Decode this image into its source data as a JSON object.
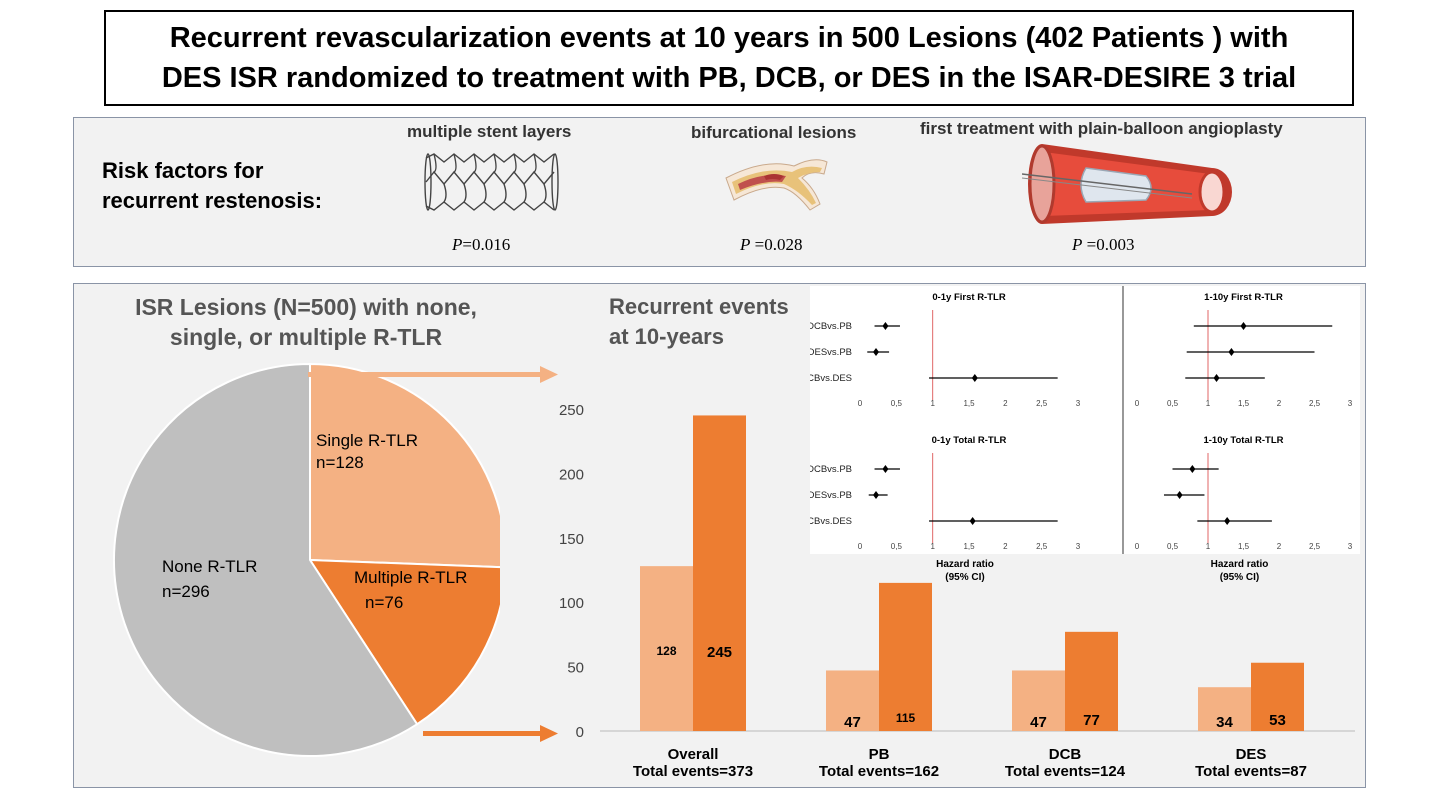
{
  "title": {
    "line1": "Recurrent revascularization events at 10 years in 500 Lesions (402 Patients ) with",
    "line2": "DES ISR randomized to treatment with PB, DCB, or DES in the ISAR-DESIRE 3 trial"
  },
  "risk_factors": {
    "heading_line1": "Risk factors for",
    "heading_line2": "recurrent restenosis:",
    "items": [
      {
        "label": "multiple stent layers",
        "p_symbol": "P",
        "p_value": "=0.016",
        "icon": "stent-mesh-icon"
      },
      {
        "label": "bifurcational lesions",
        "p_symbol": "P",
        "p_value": " =0.028",
        "icon": "artery-bifurcation-icon"
      },
      {
        "label": "first treatment with plain-balloon angioplasty",
        "p_symbol": "P",
        "p_value": " =0.003",
        "icon": "balloon-vessel-icon"
      }
    ]
  },
  "pie_title": {
    "line1": "ISR Lesions (N=500) with none,",
    "line2": "single, or multiple R-TLR"
  },
  "bars_title": {
    "line1": "Recurrent events",
    "line2": "at 10-years"
  },
  "colors": {
    "gray": "#bfbfbf",
    "light_orange": "#f4b183",
    "orange": "#ed7d31",
    "panel": "#f2f2f2",
    "red_line": "#e06666"
  },
  "chart_data": [
    {
      "type": "pie",
      "slices": [
        {
          "label": "Single R-TLR",
          "count_label": "n=128",
          "value": 128,
          "color": "#f4b183"
        },
        {
          "label": "Multiple R-TLR",
          "count_label": "n=76",
          "value": 76,
          "color": "#ed7d31"
        },
        {
          "label": "None R-TLR",
          "count_label": "n=296",
          "value": 296,
          "color": "#bfbfbf"
        }
      ]
    },
    {
      "type": "bar",
      "categories": [
        {
          "name": "Overall",
          "total": "Total events=373"
        },
        {
          "name": "PB",
          "total": "Total events=162"
        },
        {
          "name": "DCB",
          "total": "Total events=124"
        },
        {
          "name": "DES",
          "total": "Total events=87"
        }
      ],
      "series": [
        {
          "values": [
            128,
            47,
            47,
            34
          ],
          "labels": [
            "128",
            "47",
            "47",
            "34"
          ],
          "color": "#f4b183"
        },
        {
          "values": [
            245,
            115,
            77,
            53
          ],
          "labels": [
            "245",
            "115",
            "77",
            "53"
          ],
          "color": "#ed7d31"
        }
      ],
      "ylim": [
        0,
        250
      ],
      "yticks": [
        "0",
        "50",
        "100",
        "150",
        "200",
        "250"
      ],
      "grid": false
    },
    {
      "type": "scatter",
      "title": "0-1y First R-TLR",
      "rows": [
        {
          "label": "DCBvs.PB",
          "hr": 0.35,
          "lo": 0.2,
          "hi": 0.55
        },
        {
          "label": "DESvs.PB",
          "hr": 0.22,
          "lo": 0.1,
          "hi": 0.4
        },
        {
          "label": "DCBvs.DES",
          "hr": 1.58,
          "lo": 0.95,
          "hi": 2.72
        }
      ],
      "xticks": [
        "0",
        "0,5",
        "1",
        "1,5",
        "2",
        "2,5",
        "3"
      ],
      "xlim": [
        0,
        3
      ],
      "reference": 1
    },
    {
      "type": "scatter",
      "title": "1-10y First R-TLR",
      "rows": [
        {
          "label": "",
          "hr": 1.5,
          "lo": 0.8,
          "hi": 2.75
        },
        {
          "label": "",
          "hr": 1.33,
          "lo": 0.7,
          "hi": 2.5
        },
        {
          "label": "",
          "hr": 1.12,
          "lo": 0.68,
          "hi": 1.8
        }
      ],
      "xticks": [
        "0",
        "0,5",
        "1",
        "1,5",
        "2",
        "2,5",
        "3"
      ],
      "xlim": [
        0,
        3
      ],
      "reference": 1
    },
    {
      "type": "scatter",
      "title": "0-1y Total R-TLR",
      "xlabel": "Hazard ratio",
      "xlabel2": "(95% CI)",
      "rows": [
        {
          "label": "DCBvs.PB",
          "hr": 0.35,
          "lo": 0.2,
          "hi": 0.55
        },
        {
          "label": "DESvs.PB",
          "hr": 0.22,
          "lo": 0.12,
          "hi": 0.38
        },
        {
          "label": "DCBvs.DES",
          "hr": 1.55,
          "lo": 0.95,
          "hi": 2.72
        }
      ],
      "xticks": [
        "0",
        "0,5",
        "1",
        "1,5",
        "2",
        "2,5",
        "3"
      ],
      "xlim": [
        0,
        3
      ],
      "reference": 1
    },
    {
      "type": "scatter",
      "title": "1-10y Total R-TLR",
      "xlabel": "Hazard ratio",
      "xlabel2": "(95% CI)",
      "rows": [
        {
          "label": "",
          "hr": 0.78,
          "lo": 0.5,
          "hi": 1.15
        },
        {
          "label": "",
          "hr": 0.6,
          "lo": 0.38,
          "hi": 0.95
        },
        {
          "label": "",
          "hr": 1.27,
          "lo": 0.85,
          "hi": 1.9
        }
      ],
      "xticks": [
        "0",
        "0,5",
        "1",
        "1,5",
        "2",
        "2,5",
        "3"
      ],
      "xlim": [
        0,
        3
      ],
      "reference": 1
    }
  ]
}
